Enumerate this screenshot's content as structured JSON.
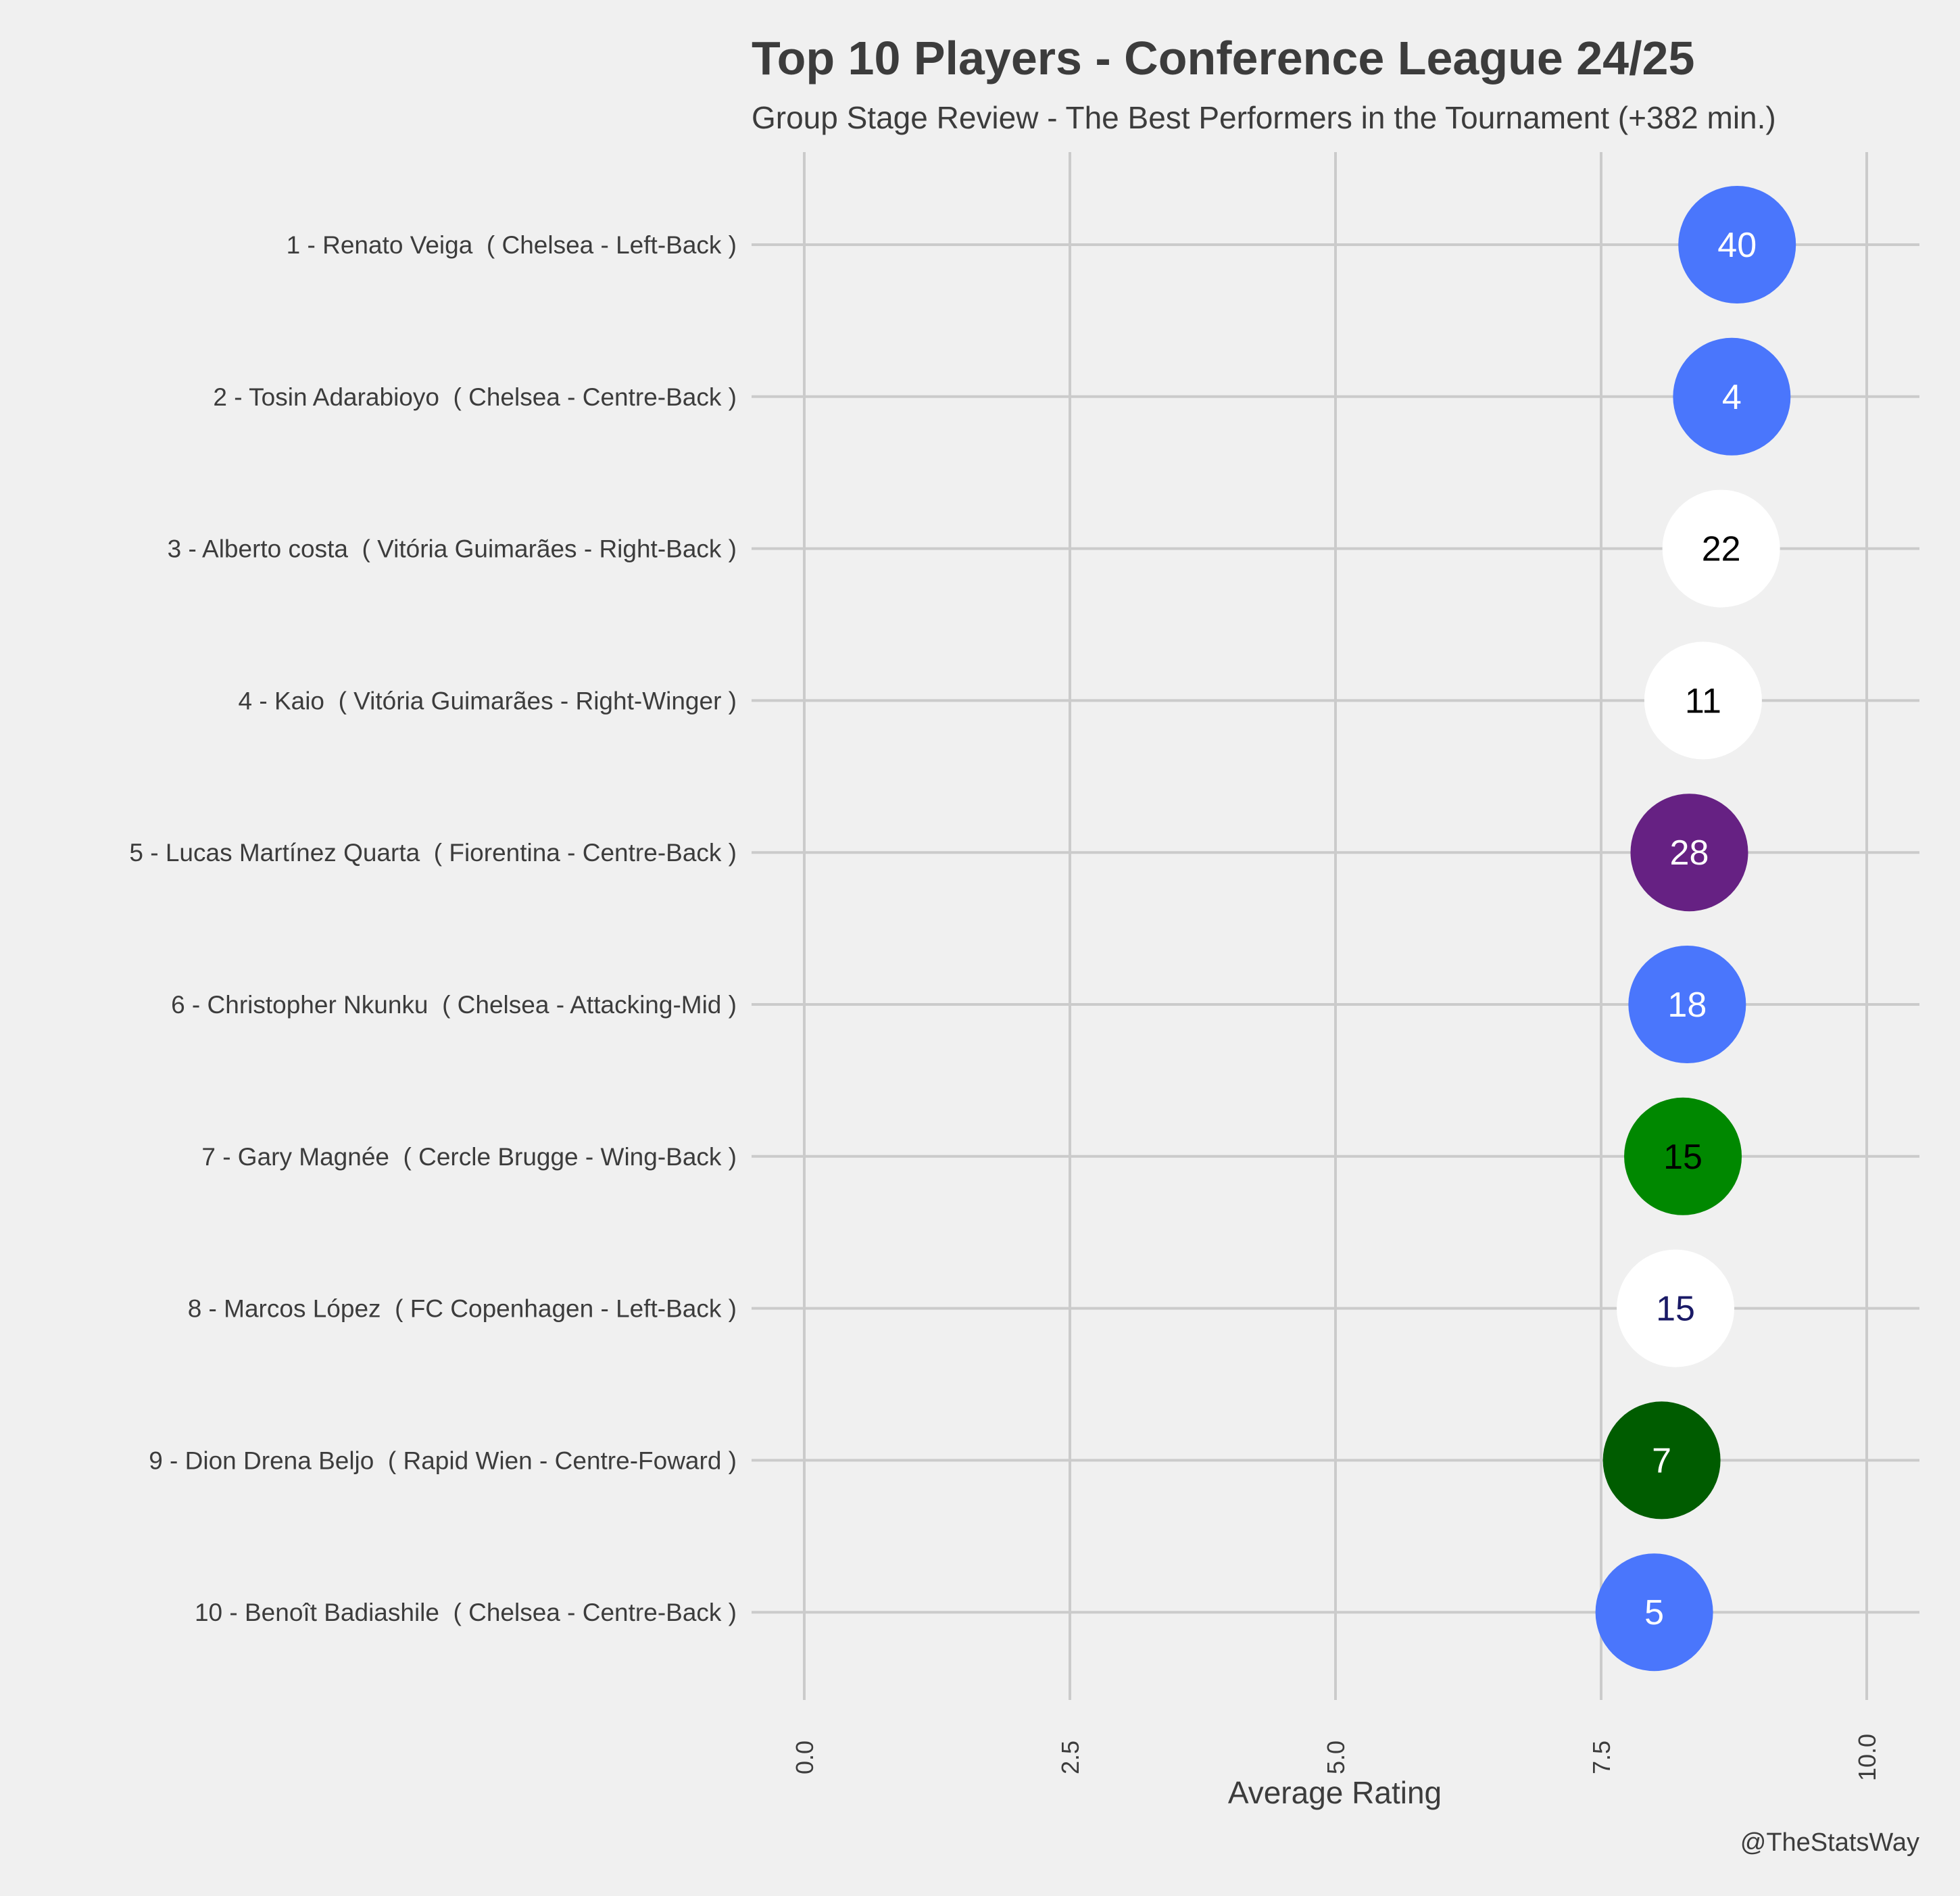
{
  "chart_data": {
    "type": "scatter",
    "title": "Top 10 Players - Conference League 24/25",
    "subtitle": "Group Stage Review - The Best Performers in the Tournament (+382 min.)",
    "xlabel": "Average Rating",
    "ylabel": "",
    "xlim": [
      -0.4,
      10.5
    ],
    "xticks": [
      "0.0",
      "2.5",
      "5.0",
      "7.5",
      "10.0"
    ],
    "xtick_values": [
      0,
      2.5,
      5,
      7.5,
      10
    ],
    "grid": true,
    "credit": "@TheStatsWay",
    "players": [
      {
        "label": "1 - Renato Veiga  ( Chelsea - Left-Back )",
        "rating": 8.78,
        "number": "40",
        "fill": "#4a76fc",
        "text_color": "#ffffff"
      },
      {
        "label": "2 - Tosin Adarabioyo  ( Chelsea - Centre-Back )",
        "rating": 8.73,
        "number": "4",
        "fill": "#4a76fc",
        "text_color": "#ffffff"
      },
      {
        "label": "3 - Alberto costa  ( Vitória Guimarães - Right-Back )",
        "rating": 8.63,
        "number": "22",
        "fill": "#ffffff",
        "text_color": "#000000"
      },
      {
        "label": "4 - Kaio  ( Vitória Guimarães - Right-Winger )",
        "rating": 8.46,
        "number": "11",
        "fill": "#ffffff",
        "text_color": "#000000"
      },
      {
        "label": "5 - Lucas Martínez Quarta  ( Fiorentina - Centre-Back )",
        "rating": 8.33,
        "number": "28",
        "fill": "#662183",
        "text_color": "#ffffff"
      },
      {
        "label": "6 - Christopher Nkunku  ( Chelsea - Attacking-Mid )",
        "rating": 8.31,
        "number": "18",
        "fill": "#4a76fc",
        "text_color": "#ffffff"
      },
      {
        "label": "7 - Gary Magnée  ( Cercle Brugge - Wing-Back )",
        "rating": 8.27,
        "number": "15",
        "fill": "#008800",
        "text_color": "#000000"
      },
      {
        "label": "8 - Marcos López  ( FC Copenhagen - Left-Back )",
        "rating": 8.2,
        "number": "15",
        "fill": "#ffffff",
        "text_color": "#1a1a66"
      },
      {
        "label": "9 - Dion Drena Beljo  ( Rapid Wien - Centre-Foward )",
        "rating": 8.07,
        "number": "7",
        "fill": "#005c00",
        "text_color": "#ffffff"
      },
      {
        "label": "10 - Benoît Badiashile  ( Chelsea - Centre-Back )",
        "rating": 8.0,
        "number": "5",
        "fill": "#4a76fc",
        "text_color": "#ffffff"
      }
    ]
  }
}
